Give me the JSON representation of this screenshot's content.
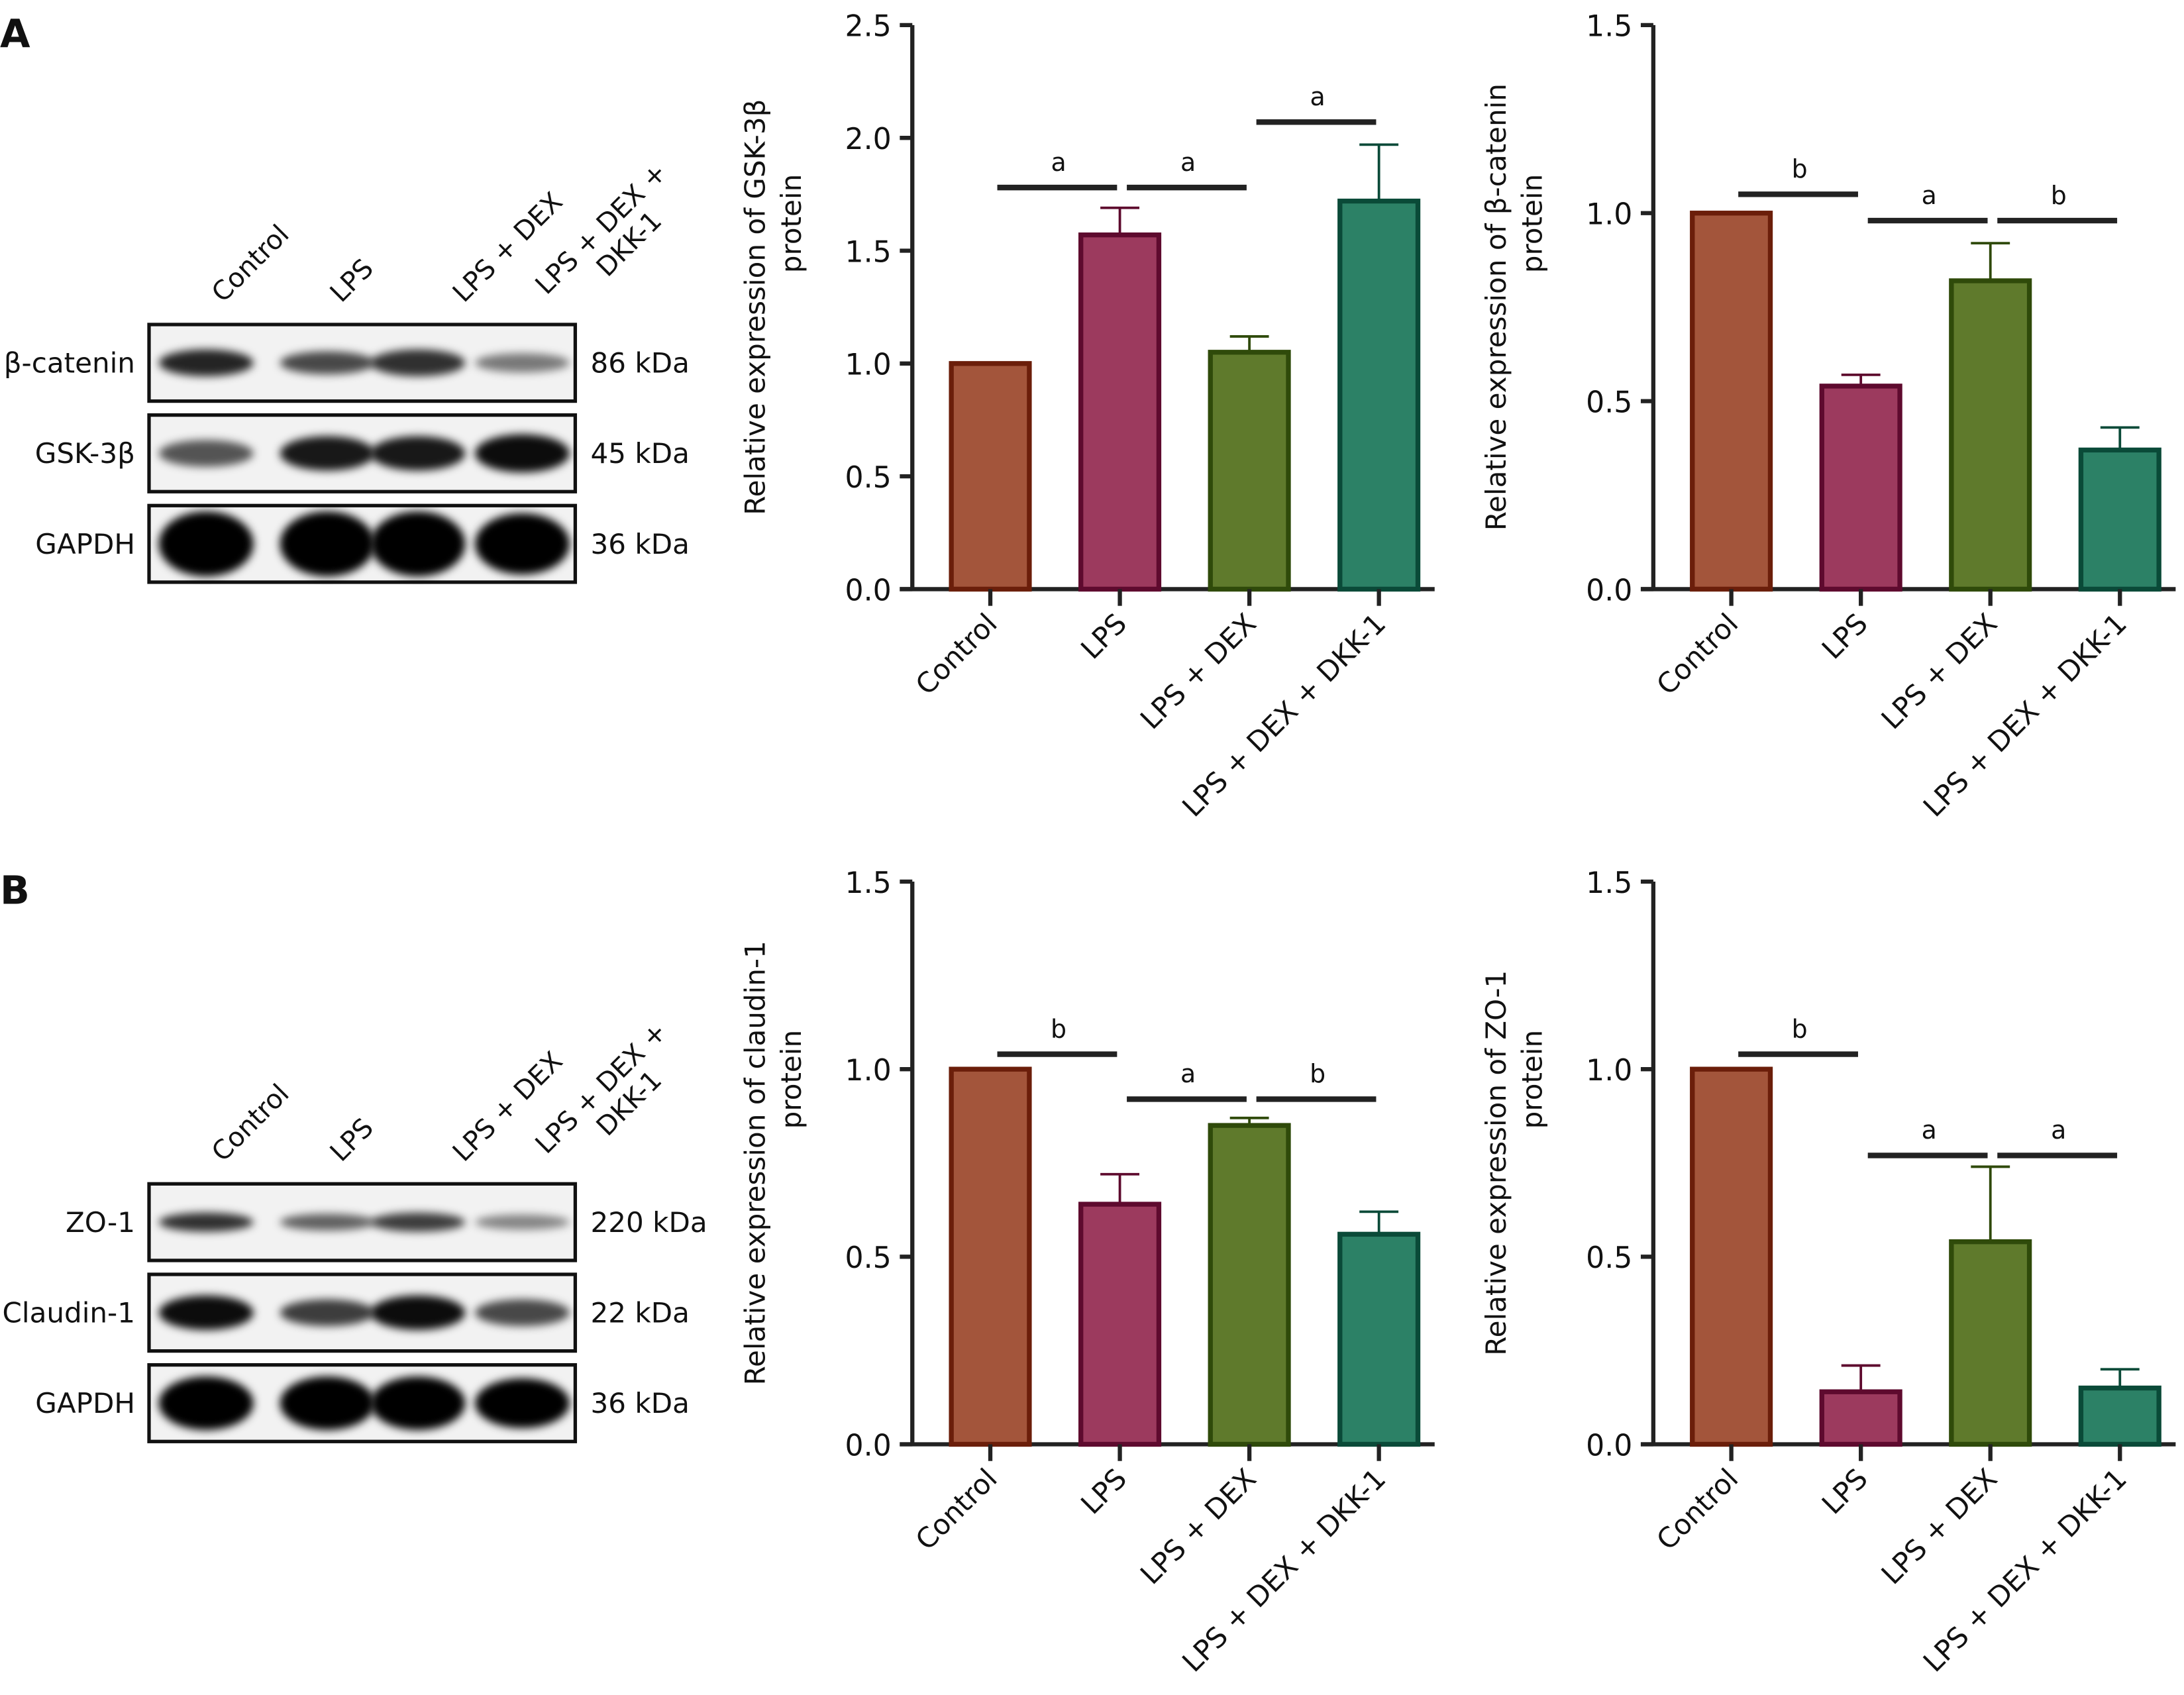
{
  "panels": [
    {
      "label": "A"
    },
    {
      "label": "B"
    }
  ],
  "blots": [
    {
      "lanes": [
        "Control",
        "LPS",
        "LPS + DEX",
        "LPS + DEX + DKK-1"
      ],
      "rows": [
        {
          "protein": "β-catenin",
          "size": "86 kDa",
          "intensity": [
            0.85,
            0.7,
            0.8,
            0.5
          ],
          "thickness": [
            0.35,
            0.3,
            0.35,
            0.25
          ]
        },
        {
          "protein": "GSK-3β",
          "size": "45 kDa",
          "intensity": [
            0.65,
            0.9,
            0.9,
            0.95
          ],
          "thickness": [
            0.35,
            0.45,
            0.45,
            0.5
          ]
        },
        {
          "protein": "GAPDH",
          "size": "36 kDa",
          "intensity": [
            1,
            1,
            1,
            1
          ],
          "thickness": [
            0.85,
            0.85,
            0.85,
            0.8
          ]
        }
      ]
    },
    {
      "lanes": [
        "Control",
        "LPS",
        "LPS + DEX",
        "LPS + DEX + DKK-1"
      ],
      "rows": [
        {
          "protein": "ZO-1",
          "size": "220 kDa",
          "intensity": [
            0.8,
            0.6,
            0.75,
            0.45
          ],
          "thickness": [
            0.25,
            0.22,
            0.25,
            0.2
          ]
        },
        {
          "protein": "Claudin-1",
          "size": "22 kDa",
          "intensity": [
            0.95,
            0.75,
            0.95,
            0.7
          ],
          "thickness": [
            0.45,
            0.35,
            0.45,
            0.35
          ]
        },
        {
          "protein": "GAPDH",
          "size": "36 kDa",
          "intensity": [
            1,
            1,
            1,
            1
          ],
          "thickness": [
            0.7,
            0.7,
            0.7,
            0.65
          ]
        }
      ]
    }
  ],
  "colors": {
    "fill": [
      "#A3553B",
      "#9C3A5E",
      "#5F7A2C",
      "#2C8166"
    ],
    "stroke": [
      "#6B1E0A",
      "#5E0A2E",
      "#2F4A0A",
      "#0A4A38"
    ]
  },
  "chart_data": [
    {
      "type": "bar",
      "panel": "A",
      "categories": [
        "Control",
        "LPS",
        "LPS + DEX",
        "LPS + DEX + DKK-1"
      ],
      "values": [
        1.0,
        1.57,
        1.05,
        1.72
      ],
      "error_upper": [
        1.0,
        1.69,
        1.12,
        1.97
      ],
      "ylabel": [
        "Relative expression of GSK-3β",
        "protein"
      ],
      "ylim": [
        0,
        2.5
      ],
      "yticks": [
        "0.0",
        "0.5",
        "1.0",
        "1.5",
        "2.0",
        "2.5"
      ],
      "significance": [
        {
          "from": 0,
          "to": 1,
          "y": 1.78,
          "label": "a"
        },
        {
          "from": 1,
          "to": 2,
          "y": 1.78,
          "label": "a"
        },
        {
          "from": 2,
          "to": 3,
          "y": 2.07,
          "label": "a"
        }
      ]
    },
    {
      "type": "bar",
      "panel": "A",
      "categories": [
        "Control",
        "LPS",
        "LPS + DEX",
        "LPS + DEX + DKK-1"
      ],
      "values": [
        1.0,
        0.54,
        0.82,
        0.37
      ],
      "error_upper": [
        1.0,
        0.57,
        0.92,
        0.43
      ],
      "ylabel": [
        "Relative expression of β-catenin",
        "protein"
      ],
      "ylim": [
        0,
        1.5
      ],
      "yticks": [
        "0.0",
        "0.5",
        "1.0",
        "1.5"
      ],
      "significance": [
        {
          "from": 0,
          "to": 1,
          "y": 1.05,
          "label": "b"
        },
        {
          "from": 1,
          "to": 2,
          "y": 0.98,
          "label": "a"
        },
        {
          "from": 2,
          "to": 3,
          "y": 0.98,
          "label": "b"
        }
      ]
    },
    {
      "type": "bar",
      "panel": "B",
      "categories": [
        "Control",
        "LPS",
        "LPS + DEX",
        "LPS + DEX + DKK-1"
      ],
      "values": [
        1.0,
        0.64,
        0.85,
        0.56
      ],
      "error_upper": [
        1.0,
        0.72,
        0.87,
        0.62
      ],
      "ylabel": [
        "Relative expression of claudin-1",
        "protein"
      ],
      "ylim": [
        0,
        1.5
      ],
      "yticks": [
        "0.0",
        "0.5",
        "1.0",
        "1.5"
      ],
      "significance": [
        {
          "from": 0,
          "to": 1,
          "y": 1.04,
          "label": "b"
        },
        {
          "from": 1,
          "to": 2,
          "y": 0.92,
          "label": "a"
        },
        {
          "from": 2,
          "to": 3,
          "y": 0.92,
          "label": "b"
        }
      ]
    },
    {
      "type": "bar",
      "panel": "B",
      "categories": [
        "Control",
        "LPS",
        "LPS + DEX",
        "LPS + DEX + DKK-1"
      ],
      "values": [
        1.0,
        0.14,
        0.54,
        0.15
      ],
      "error_upper": [
        1.0,
        0.21,
        0.74,
        0.2
      ],
      "ylabel": [
        "Relative expression of ZO-1",
        "protein"
      ],
      "ylim": [
        0,
        1.5
      ],
      "yticks": [
        "0.0",
        "0.5",
        "1.0",
        "1.5"
      ],
      "significance": [
        {
          "from": 0,
          "to": 1,
          "y": 1.04,
          "label": "b"
        },
        {
          "from": 1,
          "to": 2,
          "y": 0.77,
          "label": "a"
        },
        {
          "from": 2,
          "to": 3,
          "y": 0.77,
          "label": "a"
        }
      ]
    }
  ]
}
